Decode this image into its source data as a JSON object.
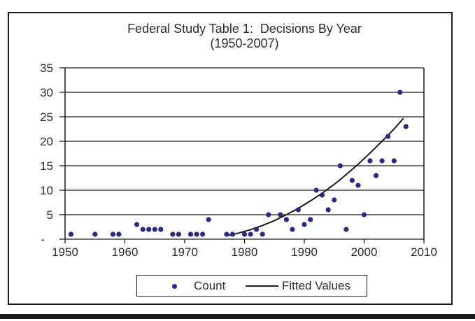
{
  "chart_data": {
    "type": "scatter",
    "title_line1": "Federal Study Table 1:  Decisions By Year",
    "title_line2": "(1950-2007)",
    "xlabel": "",
    "ylabel": "",
    "xlim": [
      1950,
      2010
    ],
    "ylim": [
      0,
      35
    ],
    "x_ticks": [
      "1950",
      "1960",
      "1970",
      "1980",
      "1990",
      "2000",
      "2010"
    ],
    "y_ticks": [
      35,
      30,
      25,
      20,
      15,
      10,
      5
    ],
    "y_zero_label": "-",
    "grid": "horizontal",
    "legend_position": "bottom-center",
    "series": [
      {
        "name": "Count",
        "type": "scatter",
        "color": "#2a2a85",
        "points": [
          [
            1951,
            1
          ],
          [
            1955,
            1
          ],
          [
            1958,
            1
          ],
          [
            1959,
            1
          ],
          [
            1962,
            3
          ],
          [
            1963,
            2
          ],
          [
            1964,
            2
          ],
          [
            1965,
            2
          ],
          [
            1966,
            2
          ],
          [
            1968,
            1
          ],
          [
            1969,
            1
          ],
          [
            1971,
            1
          ],
          [
            1972,
            1
          ],
          [
            1973,
            1
          ],
          [
            1974,
            4
          ],
          [
            1977,
            1
          ],
          [
            1978,
            1
          ],
          [
            1980,
            1
          ],
          [
            1981,
            1
          ],
          [
            1982,
            2
          ],
          [
            1983,
            1
          ],
          [
            1984,
            5
          ],
          [
            1986,
            5
          ],
          [
            1987,
            4
          ],
          [
            1988,
            2
          ],
          [
            1989,
            6
          ],
          [
            1990,
            3
          ],
          [
            1991,
            4
          ],
          [
            1992,
            10
          ],
          [
            1993,
            9
          ],
          [
            1994,
            6
          ],
          [
            1995,
            8
          ],
          [
            1996,
            15
          ],
          [
            1997,
            2
          ],
          [
            1998,
            12
          ],
          [
            1999,
            11
          ],
          [
            2000,
            5
          ],
          [
            2001,
            16
          ],
          [
            2002,
            13
          ],
          [
            2003,
            16
          ],
          [
            2004,
            21
          ],
          [
            2005,
            16
          ],
          [
            2006,
            30
          ],
          [
            2007,
            23
          ]
        ]
      },
      {
        "name": "Fitted Values",
        "type": "line",
        "color": "#1c1c1c",
        "points": [
          [
            1977,
            0.7
          ],
          [
            1979,
            1.25
          ],
          [
            1981,
            1.95
          ],
          [
            1983,
            2.8
          ],
          [
            1985,
            3.8
          ],
          [
            1987,
            5.0
          ],
          [
            1989,
            6.3
          ],
          [
            1991,
            7.8
          ],
          [
            1993,
            9.4
          ],
          [
            1995,
            11.2
          ],
          [
            1997,
            13.2
          ],
          [
            1999,
            15.3
          ],
          [
            2001,
            17.6
          ],
          [
            2003,
            20.0
          ],
          [
            2005,
            22.5
          ],
          [
            2006.5,
            24.6
          ]
        ]
      }
    ],
    "colors": {
      "dot": "#2a2a85",
      "line": "#1c1c1c",
      "frame": "#1c1c1c",
      "text": "#2d2d2d"
    }
  }
}
